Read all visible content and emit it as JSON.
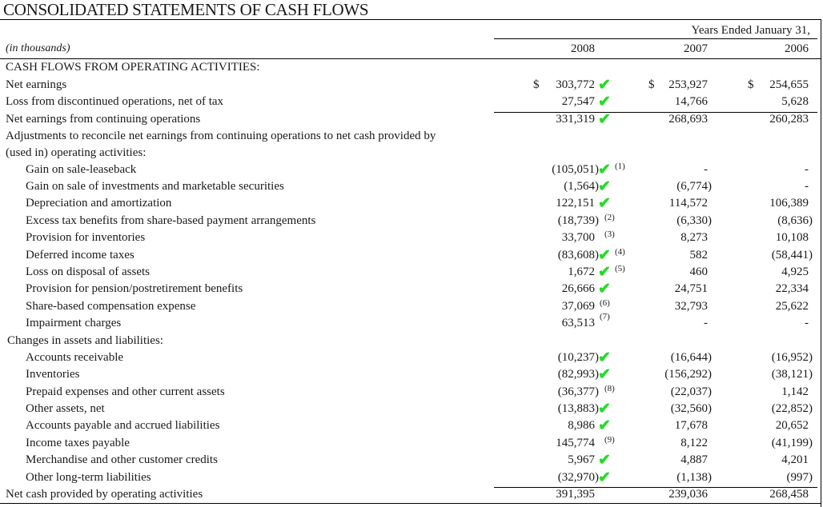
{
  "title": "CONSOLIDATED STATEMENTS OF CASH FLOWS",
  "header": {
    "period_label": "Years Ended January 31,",
    "unit": "(in thousands)",
    "years": [
      "2008",
      "2007",
      "2006"
    ]
  },
  "check_color": "#22dd22",
  "rows": [
    {
      "label": "CASH FLOWS FROM OPERATING ACTIVITIES:",
      "indent": 0,
      "caps": true,
      "values": [
        "",
        "",
        ""
      ]
    },
    {
      "label": "Net earnings",
      "indent": 0,
      "dollar": "$",
      "values": [
        "303,772",
        "253,927",
        "254,655"
      ],
      "check": true
    },
    {
      "label": "Loss from discontinued operations, net of tax",
      "indent": 0,
      "values": [
        "27,547",
        "14,766",
        "5,628"
      ],
      "check": true
    },
    {
      "label": "Net earnings from continuing operations",
      "indent": 0,
      "values": [
        "331,319",
        "268,693",
        "260,283"
      ],
      "check": true
    },
    {
      "label": "Adjustments to reconcile net earnings from continuing operations to net cash provided by",
      "indent": 0,
      "values": [
        "",
        "",
        ""
      ]
    },
    {
      "label": "(used in) operating  activities:",
      "indent": 0,
      "values": [
        "",
        "",
        ""
      ]
    },
    {
      "label": "Gain on sale-leaseback",
      "indent": 1,
      "values": [
        "(105,051)",
        "-",
        "-"
      ],
      "check": true,
      "footnote": "(1)"
    },
    {
      "label": "Gain on sale of investments and marketable securities",
      "indent": 1,
      "values": [
        "(1,564)",
        "(6,774)",
        "-"
      ],
      "check": true
    },
    {
      "label": "Depreciation and amortization",
      "indent": 1,
      "values": [
        "122,151",
        "114,572",
        "106,389"
      ],
      "check": true
    },
    {
      "label": "Excess tax benefits from share-based payment arrangements",
      "indent": 1,
      "values": [
        "(18,739)",
        "(6,330)",
        "(8,636)"
      ],
      "footnote": "(2)"
    },
    {
      "label": "Provision for inventories",
      "indent": 1,
      "values": [
        "33,700",
        "8,273",
        "10,108"
      ],
      "footnote": "(3)"
    },
    {
      "label": "Deferred income taxes",
      "indent": 1,
      "values": [
        "(83,608)",
        "582",
        "(58,441)"
      ],
      "check": true,
      "footnote": "(4)"
    },
    {
      "label": "Loss on disposal of assets",
      "indent": 1,
      "values": [
        "1,672",
        "460",
        "4,925"
      ],
      "check": true,
      "footnote": "(5)"
    },
    {
      "label": "Provision for pension/postretirement benefits",
      "indent": 1,
      "values": [
        "26,666",
        "24,751",
        "22,334"
      ],
      "check": true
    },
    {
      "label": "Share-based compensation expense",
      "indent": 1,
      "values": [
        "37,069",
        "32,793",
        "25,622"
      ],
      "footnote": "(6)"
    },
    {
      "label": "Impairment charges",
      "indent": 1,
      "values": [
        "63,513",
        "-",
        "-"
      ],
      "footnote": "(7)"
    },
    {
      "label": "Changes in assets and liabilities:",
      "indent": 0.1,
      "values": [
        "",
        "",
        ""
      ]
    },
    {
      "label": "Accounts receivable",
      "indent": 1,
      "values": [
        "(10,237)",
        "(16,644)",
        "(16,952)"
      ],
      "check": true
    },
    {
      "label": "Inventories",
      "indent": 1,
      "values": [
        "(82,993)",
        "(156,292)",
        "(38,121)"
      ],
      "check": true
    },
    {
      "label": "Prepaid expenses and other current assets",
      "indent": 1,
      "values": [
        "(36,377)",
        "(22,037)",
        "1,142"
      ],
      "footnote": "(8)"
    },
    {
      "label": "Other assets, net",
      "indent": 1,
      "values": [
        "(13,883)",
        "(32,560)",
        "(22,852)"
      ],
      "check": true
    },
    {
      "label": "Accounts payable and accrued liabilities",
      "indent": 1,
      "values": [
        "8,986",
        "17,678",
        "20,652"
      ],
      "check": true
    },
    {
      "label": "Income taxes payable",
      "indent": 1,
      "values": [
        "145,774",
        "8,122",
        "(41,199)"
      ],
      "footnote": "(9)"
    },
    {
      "label": "Merchandise and other customer credits",
      "indent": 1,
      "values": [
        "5,967",
        "4,887",
        "4,201"
      ],
      "check": true
    },
    {
      "label": "Other long-term liabilities",
      "indent": 1,
      "values": [
        "(32,970)",
        "(1,138)",
        "(997)"
      ],
      "check": true
    },
    {
      "label": "Net cash provided by operating activities",
      "indent": 0,
      "values": [
        "391,395",
        "239,036",
        "268,458"
      ]
    }
  ]
}
